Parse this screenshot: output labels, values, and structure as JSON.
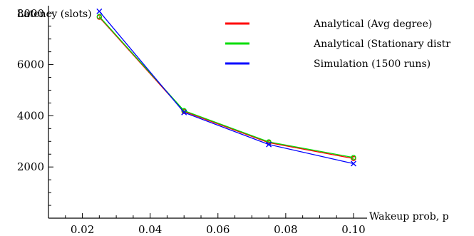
{
  "chart_data": {
    "type": "line",
    "title": "",
    "xlabel": "Wakeup prob, p",
    "ylabel": "Latency (slots)",
    "x": [
      0.025,
      0.05,
      0.075,
      0.1
    ],
    "xlim": [
      0.01,
      0.104
    ],
    "ylim": [
      0,
      8300
    ],
    "xticks": [
      0.02,
      0.04,
      0.06,
      0.08,
      0.1
    ],
    "xtick_labels": [
      "0.02",
      "0.04",
      "0.06",
      "0.08",
      "0.10"
    ],
    "yticks": [
      2000,
      4000,
      6000,
      8000
    ],
    "ytick_labels": [
      "2000",
      "4000",
      "6000",
      "8000"
    ],
    "grid": false,
    "legend_position": "top-center",
    "series": [
      {
        "name": "Analytical (Avg degree)",
        "color": "#ff0000",
        "marker": "circle",
        "values": [
          7850,
          4170,
          2950,
          2330
        ]
      },
      {
        "name": "Analytical (Stationary distr",
        "color": "#00dd00",
        "marker": "circle",
        "values": [
          7880,
          4200,
          2980,
          2370
        ]
      },
      {
        "name": "Simulation (1500 runs)",
        "color": "#0000ff",
        "marker": "x",
        "values": [
          8080,
          4130,
          2880,
          2130
        ]
      }
    ]
  }
}
